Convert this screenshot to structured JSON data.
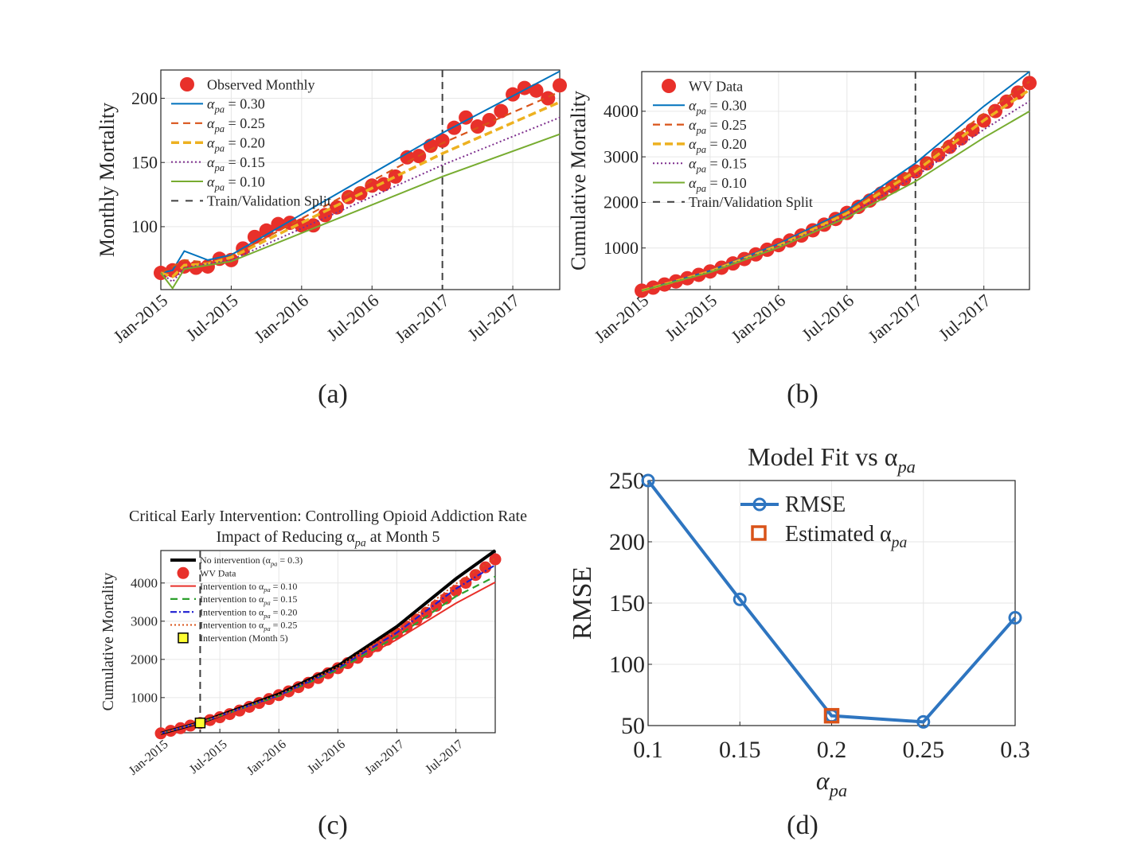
{
  "figure_labels": [
    "(a)",
    "(b)",
    "(c)",
    "(d)"
  ],
  "chart_data": [
    {
      "id": "a",
      "type": "line",
      "ylabel": "Monthly Mortality",
      "xlim": [
        "2015-01",
        "2017-11"
      ],
      "ylim": [
        51,
        222
      ],
      "grid": true,
      "legend_position": "top-left",
      "xticks": [
        [
          "2015-01",
          "Jan-2015"
        ],
        [
          "2015-07",
          "Jul-2015"
        ],
        [
          "2016-01",
          "Jan-2016"
        ],
        [
          "2016-07",
          "Jul-2016"
        ],
        [
          "2017-01",
          "Jan-2017"
        ],
        [
          "2017-07",
          "Jul-2017"
        ]
      ],
      "yticks": [
        100,
        150,
        200
      ],
      "split": {
        "x": "2017-01",
        "label": "Train/Validation Split",
        "color": "#404040"
      },
      "data_series": {
        "label": "Observed Monthly",
        "color": "#E8302A",
        "start": "2015-01",
        "values": [
          64,
          66,
          69,
          68,
          69,
          75,
          74,
          83,
          92,
          97,
          102,
          103,
          101,
          101,
          109,
          115,
          123,
          126,
          132,
          133,
          139,
          154,
          155,
          163,
          167,
          177,
          185,
          178,
          183,
          190,
          203,
          208,
          206,
          200,
          210
        ]
      },
      "series": [
        {
          "label": {
            "text": "α",
            "sub": "pa",
            "rest": " = 0.30"
          },
          "color": "#0072BD",
          "style": "solid",
          "points": [
            [
              "2015-01",
              64
            ],
            [
              "2015-02",
              66
            ],
            [
              "2015-03",
              81
            ],
            [
              "2015-05",
              74
            ],
            [
              "2015-07",
              78
            ],
            [
              "2017-01",
              173
            ],
            [
              "2017-11",
              221
            ]
          ]
        },
        {
          "label": {
            "text": "α",
            "sub": "pa",
            "rest": " = 0.25"
          },
          "color": "#D95319",
          "style": "dashed",
          "points": [
            [
              "2015-01",
              64
            ],
            [
              "2015-03",
              74
            ],
            [
              "2015-05",
              72
            ],
            [
              "2015-07",
              77
            ],
            [
              "2017-01",
              165
            ],
            [
              "2017-11",
              205
            ]
          ]
        },
        {
          "label": {
            "text": "α",
            "sub": "pa",
            "rest": " = 0.20"
          },
          "color": "#EDB120",
          "style": "thickdash",
          "points": [
            [
              "2015-01",
              64
            ],
            [
              "2015-02",
              61
            ],
            [
              "2015-03",
              70
            ],
            [
              "2015-05",
              71
            ],
            [
              "2015-07",
              76
            ],
            [
              "2017-01",
              157
            ],
            [
              "2017-11",
              197
            ]
          ]
        },
        {
          "label": {
            "text": "α",
            "sub": "pa",
            "rest": " = 0.15"
          },
          "color": "#7E2F8E",
          "style": "dotted",
          "points": [
            [
              "2015-01",
              64
            ],
            [
              "2015-02",
              57
            ],
            [
              "2015-03",
              68
            ],
            [
              "2015-07",
              74
            ],
            [
              "2017-01",
              148
            ],
            [
              "2017-11",
              185
            ]
          ]
        },
        {
          "label": {
            "text": "α",
            "sub": "pa",
            "rest": " = 0.10"
          },
          "color": "#77AC30",
          "style": "solid",
          "points": [
            [
              "2015-01",
              64
            ],
            [
              "2015-02",
              52
            ],
            [
              "2015-03",
              67
            ],
            [
              "2015-07",
              73
            ],
            [
              "2017-01",
              139
            ],
            [
              "2017-11",
              172
            ]
          ]
        }
      ]
    },
    {
      "id": "b",
      "type": "line",
      "ylabel": "Cumulative Mortality",
      "xlim": [
        "2015-01",
        "2017-11"
      ],
      "ylim": [
        87,
        4870
      ],
      "grid": true,
      "legend_position": "top-left",
      "xticks": [
        [
          "2015-01",
          "Jan-2015"
        ],
        [
          "2015-07",
          "Jul-2015"
        ],
        [
          "2016-01",
          "Jan-2016"
        ],
        [
          "2016-07",
          "Jul-2016"
        ],
        [
          "2017-01",
          "Jan-2017"
        ],
        [
          "2017-07",
          "Jul-2017"
        ]
      ],
      "yticks": [
        1000,
        2000,
        3000,
        4000
      ],
      "split": {
        "x": "2017-01",
        "label": "Train/Validation Split",
        "color": "#404040"
      },
      "data_series": {
        "label": "WV Data",
        "color": "#E8302A",
        "start": "2015-01",
        "values": [
          64,
          130,
          199,
          267,
          336,
          411,
          485,
          568,
          660,
          757,
          859,
          962,
          1063,
          1164,
          1273,
          1388,
          1511,
          1637,
          1769,
          1902,
          2041,
          2195,
          2350,
          2513,
          2680,
          2857,
          3042,
          3220,
          3403,
          3593,
          3796,
          4004,
          4210,
          4410,
          4620
        ]
      },
      "series": [
        {
          "label": {
            "text": "α",
            "sub": "pa",
            "rest": " = 0.30"
          },
          "color": "#0072BD",
          "style": "solid",
          "points": [
            [
              "2015-01",
              64
            ],
            [
              "2015-07",
              500
            ],
            [
              "2016-01",
              1090
            ],
            [
              "2016-07",
              1830
            ],
            [
              "2017-01",
              2860
            ],
            [
              "2017-07",
              4110
            ],
            [
              "2017-11",
              4870
            ]
          ]
        },
        {
          "label": {
            "text": "α",
            "sub": "pa",
            "rest": " = 0.25"
          },
          "color": "#D95319",
          "style": "dashed",
          "points": [
            [
              "2015-01",
              64
            ],
            [
              "2015-07",
              490
            ],
            [
              "2016-01",
              1070
            ],
            [
              "2016-07",
              1790
            ],
            [
              "2017-01",
              2750
            ],
            [
              "2017-07",
              3950
            ],
            [
              "2017-11",
              4650
            ]
          ]
        },
        {
          "label": {
            "text": "α",
            "sub": "pa",
            "rest": " = 0.20"
          },
          "color": "#EDB120",
          "style": "thickdash",
          "points": [
            [
              "2015-01",
              64
            ],
            [
              "2015-07",
              485
            ],
            [
              "2016-01",
              1055
            ],
            [
              "2016-07",
              1760
            ],
            [
              "2017-01",
              2680
            ],
            [
              "2017-07",
              3800
            ],
            [
              "2017-11",
              4470
            ]
          ]
        },
        {
          "label": {
            "text": "α",
            "sub": "pa",
            "rest": " = 0.15"
          },
          "color": "#7E2F8E",
          "style": "dotted",
          "points": [
            [
              "2015-01",
              64
            ],
            [
              "2015-07",
              475
            ],
            [
              "2016-01",
              1030
            ],
            [
              "2016-07",
              1710
            ],
            [
              "2017-01",
              2570
            ],
            [
              "2017-07",
              3600
            ],
            [
              "2017-11",
              4220
            ]
          ]
        },
        {
          "label": {
            "text": "α",
            "sub": "pa",
            "rest": " = 0.10"
          },
          "color": "#77AC30",
          "style": "solid",
          "points": [
            [
              "2015-01",
              64
            ],
            [
              "2015-07",
              465
            ],
            [
              "2016-01",
              1010
            ],
            [
              "2016-07",
              1670
            ],
            [
              "2017-01",
              2460
            ],
            [
              "2017-07",
              3420
            ],
            [
              "2017-11",
              4000
            ]
          ]
        }
      ]
    },
    {
      "id": "c",
      "type": "line",
      "title": [
        "Critical Early Intervention: Controlling Opioid Addiction Rate",
        {
          "text": "Impact of Reducing α",
          "sub": "pa",
          "rest": " at Month 5"
        }
      ],
      "ylabel": "Cumulative Mortality",
      "xlim": [
        "2015-01",
        "2017-11"
      ],
      "ylim": [
        80,
        4850
      ],
      "grid": true,
      "legend_position": "top-left",
      "xticks": [
        [
          "2015-01",
          "Jan-2015"
        ],
        [
          "2015-07",
          "Jul-2015"
        ],
        [
          "2016-01",
          "Jan-2016"
        ],
        [
          "2016-07",
          "Jul-2016"
        ],
        [
          "2017-01",
          "Jan-2017"
        ],
        [
          "2017-07",
          "Jul-2017"
        ]
      ],
      "yticks": [
        1000,
        2000,
        3000,
        4000
      ],
      "intervention": {
        "x": "2015-05",
        "y": 336,
        "label": "Intervention (Month 5)",
        "color": "#FFFF33"
      },
      "data_series": {
        "label": "WV Data",
        "color": "#E8302A",
        "start": "2015-01",
        "values": [
          64,
          130,
          199,
          267,
          336,
          411,
          485,
          568,
          660,
          757,
          859,
          962,
          1063,
          1164,
          1273,
          1388,
          1511,
          1637,
          1769,
          1902,
          2041,
          2195,
          2350,
          2513,
          2680,
          2857,
          3042,
          3220,
          3403,
          3593,
          3796,
          4004,
          4210,
          4410,
          4620
        ]
      },
      "series": [
        {
          "label": {
            "text": "No intervention (α",
            "sub": "pa",
            "rest": " = 0.3)"
          },
          "color": "#000000",
          "style": "thick",
          "points": [
            [
              "2015-01",
              64
            ],
            [
              "2015-05",
              345
            ],
            [
              "2016-01",
              1090
            ],
            [
              "2016-07",
              1830
            ],
            [
              "2017-01",
              2860
            ],
            [
              "2017-07",
              4110
            ],
            [
              "2017-11",
              4850
            ]
          ]
        },
        {
          "label": {
            "text": "Intervention to α",
            "sub": "pa",
            "rest": " = 0.10"
          },
          "color": "#E8302A",
          "style": "solid",
          "points": [
            [
              "2015-01",
              64
            ],
            [
              "2015-05",
              345
            ],
            [
              "2016-01",
              1030
            ],
            [
              "2016-07",
              1700
            ],
            [
              "2017-01",
              2520
            ],
            [
              "2017-07",
              3470
            ],
            [
              "2017-11",
              4020
            ]
          ]
        },
        {
          "label": {
            "text": "Intervention to α",
            "sub": "pa",
            "rest": " = 0.15"
          },
          "color": "#2CA02C",
          "style": "dashed",
          "points": [
            [
              "2015-01",
              64
            ],
            [
              "2015-05",
              345
            ],
            [
              "2016-01",
              1045
            ],
            [
              "2016-07",
              1730
            ],
            [
              "2017-01",
              2600
            ],
            [
              "2017-07",
              3650
            ],
            [
              "2017-11",
              4170
            ]
          ]
        },
        {
          "label": {
            "text": "Intervention to α",
            "sub": "pa",
            "rest": " = 0.20"
          },
          "color": "#1F1FD0",
          "style": "dashdot",
          "points": [
            [
              "2015-01",
              64
            ],
            [
              "2015-05",
              345
            ],
            [
              "2016-01",
              1060
            ],
            [
              "2016-07",
              1770
            ],
            [
              "2017-01",
              2700
            ],
            [
              "2017-07",
              3850
            ],
            [
              "2017-11",
              4470
            ]
          ]
        },
        {
          "label": {
            "text": "Intervention to α",
            "sub": "pa",
            "rest": " = 0.25"
          },
          "color": "#D95319",
          "style": "dotted",
          "points": [
            [
              "2015-01",
              64
            ],
            [
              "2015-05",
              345
            ],
            [
              "2016-01",
              1075
            ],
            [
              "2016-07",
              1800
            ],
            [
              "2017-01",
              2780
            ],
            [
              "2017-07",
              3980
            ],
            [
              "2017-11",
              4650
            ]
          ]
        }
      ]
    },
    {
      "id": "d",
      "type": "line",
      "title": {
        "text": "Model Fit vs α",
        "sub": "pa",
        "rest": ""
      },
      "xlabel": {
        "text": "α",
        "sub": "pa",
        "rest": ""
      },
      "ylabel": "RMSE",
      "xlim": [
        0.1,
        0.3
      ],
      "ylim": [
        50,
        250
      ],
      "grid": true,
      "legend_position": "top-center",
      "xticks": [
        [
          0.1,
          "0.1"
        ],
        [
          0.15,
          "0.15"
        ],
        [
          0.2,
          "0.2"
        ],
        [
          0.25,
          "0.25"
        ],
        [
          0.3,
          "0.3"
        ]
      ],
      "yticks": [
        50,
        100,
        150,
        200,
        250
      ],
      "series": [
        {
          "label": "RMSE",
          "color": "#2E75C0",
          "x": [
            0.1,
            0.15,
            0.2,
            0.25,
            0.3
          ],
          "values": [
            250,
            153,
            58,
            53,
            138
          ]
        }
      ],
      "estimate": {
        "label": {
          "text": "Estimated α",
          "sub": "pa",
          "rest": ""
        },
        "x": 0.2,
        "y": 58,
        "color": "#D95319"
      }
    }
  ]
}
